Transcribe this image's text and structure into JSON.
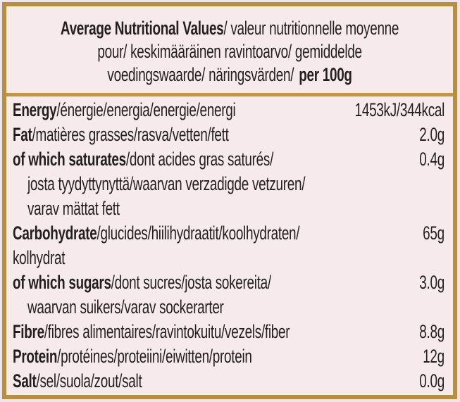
{
  "header": {
    "line1_bold": "Average Nutritional Values",
    "line1_rest": "/ valeur nutritionnelle moyenne",
    "line2": "pour/ keskimääräinen ravintoarvo/ gemiddelde",
    "line3_prefix": "voedingswaarde/ näringsvärden/",
    "line3_bold": "per 100g"
  },
  "rows": [
    {
      "bold": "Energy",
      "rest": "/énergie/energia/energie/energi",
      "value": "1453kJ/344kcal"
    },
    {
      "bold": "Fat",
      "rest": "/matières grasses/rasva/vetten/fett",
      "value": "2.0g"
    },
    {
      "bold": "of which saturates",
      "rest": "/dont acides gras saturés/",
      "value": "0.4g"
    },
    {
      "bold": "",
      "rest": "josta tyydyttynyttä/waarvan verzadigde vetzuren/",
      "value": ""
    },
    {
      "bold": "",
      "rest": "varav mättat fett",
      "value": ""
    },
    {
      "bold": "Carbohydrate",
      "rest": "/glucides/hiilihydraatit/koolhydraten/",
      "value": "65g"
    },
    {
      "bold": "",
      "rest": "kolhydrat",
      "value": ""
    },
    {
      "bold": "of which sugars",
      "rest": "/dont sucres/josta sokereita/",
      "value": "3.0g"
    },
    {
      "bold": "",
      "rest": "waarvan suikers/varav sockerarter",
      "value": ""
    },
    {
      "bold": "Fibre",
      "rest": "/fibres alimentaires/ravintokuitu/vezels/fiber",
      "value": "8.8g"
    },
    {
      "bold": "Protein",
      "rest": "/protéines/proteiini/eiwitten/protein",
      "value": "12g"
    },
    {
      "bold": "Salt",
      "rest": "/sel/suola/zout/salt",
      "value": "0.0g"
    }
  ],
  "colors": {
    "border_gold": "#b98e44",
    "divider_gold": "#c0964a",
    "panel_background": "#f6eaec",
    "page_background": "#ede7ec",
    "inner_highlight": "#f8efdd",
    "text": "#231f20"
  }
}
